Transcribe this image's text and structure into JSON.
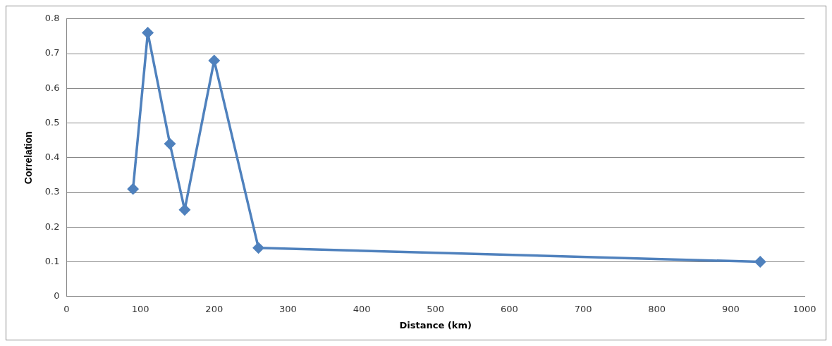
{
  "chart_data": {
    "type": "line",
    "xlabel": "Distance (km)",
    "ylabel": "Correlation",
    "x": [
      90,
      110,
      140,
      160,
      200,
      260,
      940
    ],
    "series": [
      {
        "color": "#4f81bd",
        "values": [
          0.31,
          0.76,
          0.44,
          0.25,
          0.68,
          0.14,
          0.1
        ]
      }
    ],
    "xlim": [
      0,
      1000
    ],
    "xticks": [
      0,
      100,
      200,
      300,
      400,
      500,
      600,
      700,
      800,
      900,
      1000
    ],
    "ylim": [
      0,
      0.8
    ],
    "yticks": [
      0,
      0.1,
      0.2,
      0.3,
      0.4,
      0.5,
      0.6,
      0.7,
      0.8
    ],
    "grid": "y",
    "legend": false,
    "marker": "diamond",
    "line_style": "solid"
  }
}
